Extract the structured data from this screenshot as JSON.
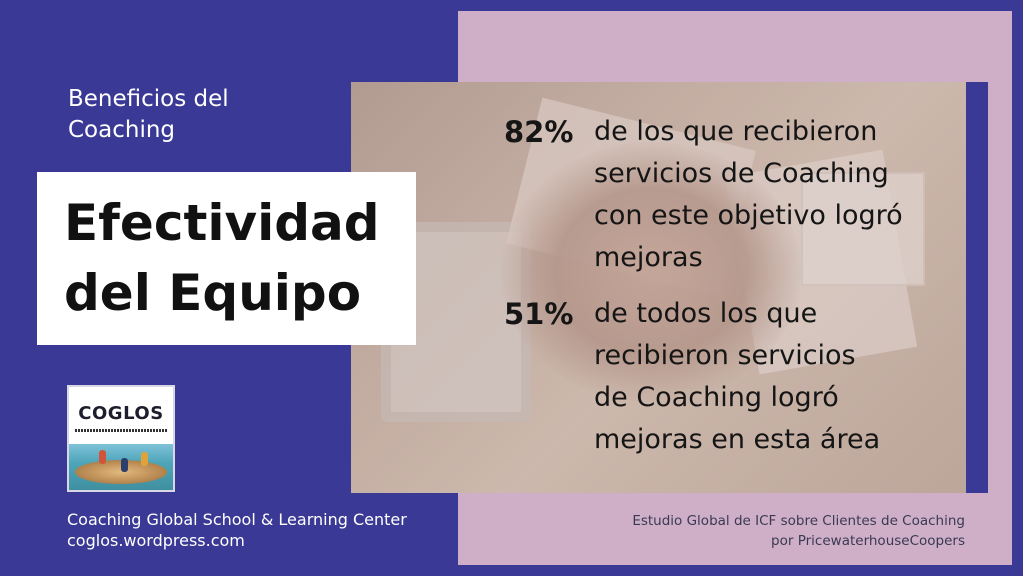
{
  "header": {
    "subtitle_line1": "Beneficios del",
    "subtitle_line2": "Coaching"
  },
  "title": {
    "line1": "Efectividad",
    "line2": "del Equipo"
  },
  "stats": [
    {
      "percent": "82%",
      "text": "de los que recibieron\nservicios de Coaching\ncon este objetivo logró\nmejoras"
    },
    {
      "percent": "51%",
      "text": "de todos los que\nrecibieron servicios\nde Coaching logró\nmejoras en esta área"
    }
  ],
  "logo": {
    "name": "COGLOS"
  },
  "footer_left": {
    "org": "Coaching Global School & Learning Center",
    "url": "coglos.wordpress.com"
  },
  "source": {
    "line1": "Estudio Global  de ICF sobre Clientes de Coaching",
    "line2": "por PricewaterhouseCoopers"
  },
  "colors": {
    "background": "#3a3a96",
    "accent_panel": "#cfaec8",
    "title_box": "#ffffff"
  }
}
